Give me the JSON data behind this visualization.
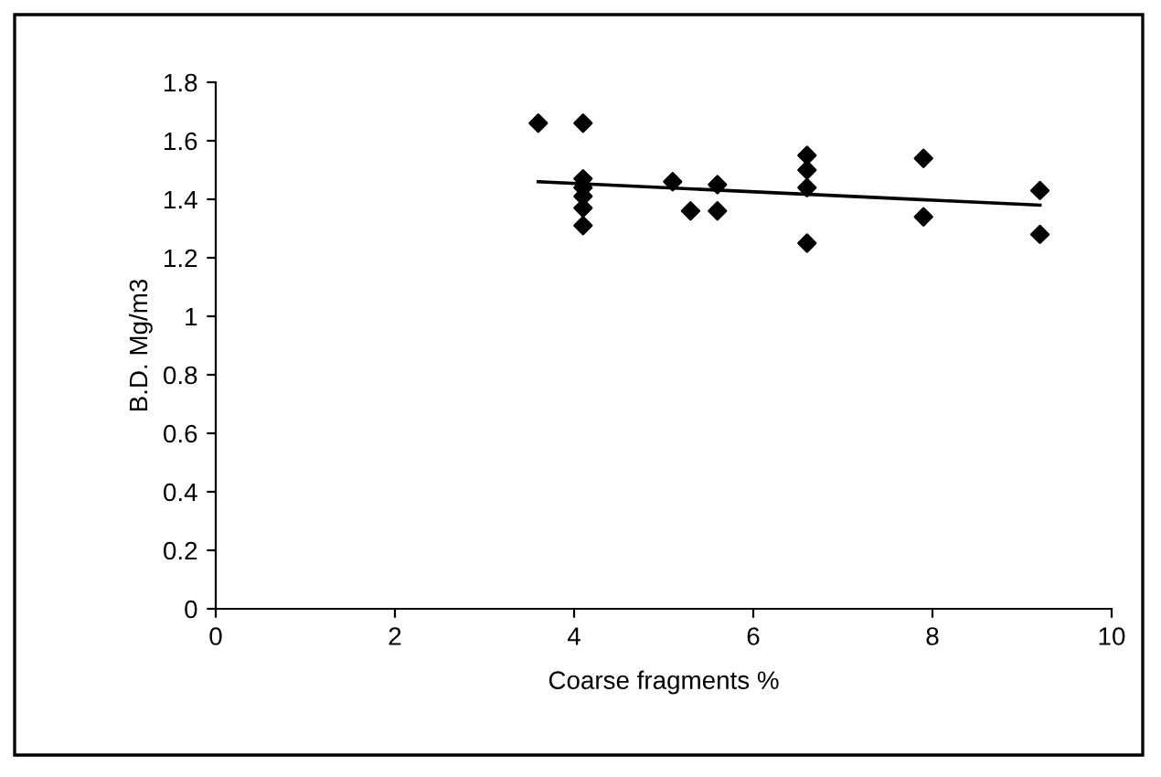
{
  "chart_data": {
    "type": "scatter",
    "xlabel": "Coarse fragments %",
    "ylabel": "B.D. Mg/m3",
    "xlim": [
      0,
      10
    ],
    "ylim": [
      0,
      1.8
    ],
    "xticks": [
      0,
      2,
      4,
      6,
      8,
      10
    ],
    "yticks": [
      0,
      0.2,
      0.4,
      0.6,
      0.8,
      {
        "value": 1,
        "label": "1"
      },
      1.2,
      1.4,
      1.6,
      1.8
    ],
    "grid": false,
    "legend": false,
    "marker": "diamond",
    "series": [
      {
        "color": "#000000",
        "x": [
          3.6,
          4.1,
          4.1,
          4.1,
          4.1,
          4.1,
          4.1,
          5.1,
          5.3,
          5.6,
          5.6,
          6.6,
          6.6,
          6.6,
          6.6,
          7.9,
          7.9,
          9.2,
          9.2
        ],
        "values": [
          1.66,
          1.66,
          1.47,
          1.44,
          1.41,
          1.37,
          1.31,
          1.46,
          1.36,
          1.45,
          1.36,
          1.55,
          1.5,
          1.44,
          1.25,
          1.54,
          1.34,
          1.43,
          1.28
        ]
      },
      {
        "type": "line",
        "color": "#000000",
        "x": [
          3.6,
          9.2
        ],
        "values": [
          1.46,
          1.38
        ],
        "marker": "none",
        "line_style": "solid"
      }
    ]
  }
}
